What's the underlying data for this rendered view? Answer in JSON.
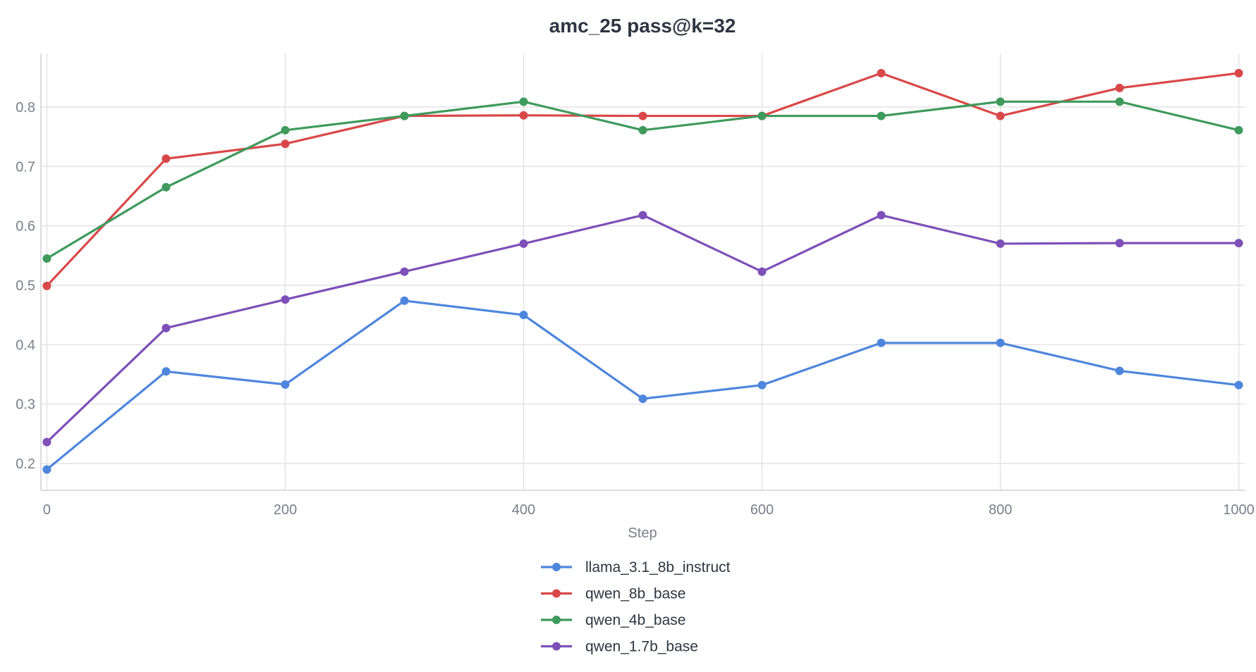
{
  "chart_data": {
    "type": "line",
    "title": "amc_25 pass@k=32",
    "xlabel": "Step",
    "ylabel": "",
    "xlim": [
      -5,
      1005
    ],
    "ylim": [
      0.155,
      0.89
    ],
    "xticks": [
      0,
      200,
      400,
      600,
      800,
      1000
    ],
    "yticks": [
      0.2,
      0.3,
      0.4,
      0.5,
      0.6,
      0.7,
      0.8
    ],
    "ytick_labels": [
      "0.2",
      "0.3",
      "0.4",
      "0.5",
      "0.6",
      "0.7",
      "0.8"
    ],
    "grid": true,
    "legend_position": "bottom-center",
    "x": [
      0,
      100,
      200,
      300,
      400,
      500,
      600,
      700,
      800,
      900,
      1000
    ],
    "series": [
      {
        "name": "llama_3.1_8b_instruct",
        "color": "#4e86dd",
        "values": [
          0.19,
          0.355,
          0.333,
          0.474,
          0.45,
          0.309,
          0.332,
          0.403,
          0.403,
          0.356,
          0.332
        ]
      },
      {
        "name": "qwen_8b_base",
        "color": "#d94848",
        "values": [
          0.499,
          0.713,
          0.738,
          0.785,
          0.786,
          0.785,
          0.785,
          0.857,
          0.785,
          0.832,
          0.857
        ]
      },
      {
        "name": "qwen_4b_base",
        "color": "#3f9a5c",
        "values": [
          0.545,
          0.665,
          0.761,
          0.785,
          0.809,
          0.761,
          0.785,
          0.785,
          0.809,
          0.809,
          0.761
        ]
      },
      {
        "name": "qwen_1.7b_base",
        "color": "#7e4fb8",
        "values": [
          0.236,
          0.428,
          0.476,
          0.523,
          0.57,
          0.618,
          0.523,
          0.618,
          0.57,
          0.571,
          0.571
        ]
      }
    ]
  }
}
